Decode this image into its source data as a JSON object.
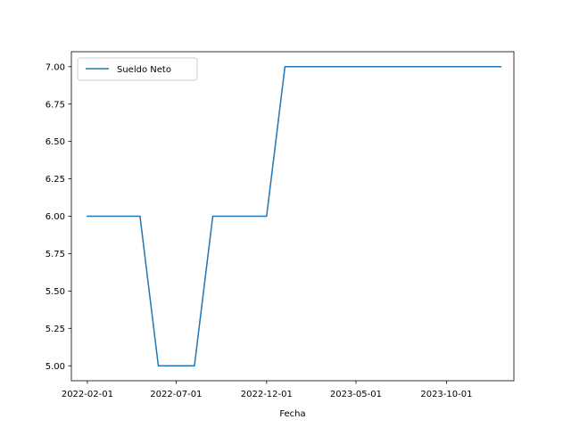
{
  "chart_data": {
    "type": "line",
    "xlabel": "Fecha",
    "ylabel": "",
    "x_tick_labels": [
      "2022-02-01",
      "2022-07-01",
      "2022-12-01",
      "2023-05-01",
      "2023-10-01"
    ],
    "y_tick_labels": [
      "5.00",
      "5.25",
      "5.50",
      "5.75",
      "6.00",
      "6.25",
      "6.50",
      "6.75",
      "7.00"
    ],
    "ylim": [
      4.9,
      7.1
    ],
    "xlim": [
      "2022-01-05",
      "2024-01-23"
    ],
    "grid": false,
    "legend_position": "top-left",
    "series": [
      {
        "name": "Sueldo Neto",
        "color": "#1f77b4",
        "x": [
          "2022-02-01",
          "2022-03-01",
          "2022-04-01",
          "2022-05-01",
          "2022-06-01",
          "2022-07-01",
          "2022-08-01",
          "2022-09-01",
          "2022-10-01",
          "2022-11-01",
          "2022-12-01",
          "2023-01-01",
          "2023-02-01",
          "2023-03-01",
          "2023-04-01",
          "2023-05-01",
          "2023-06-01",
          "2023-07-01",
          "2023-08-01",
          "2023-09-01",
          "2023-10-01",
          "2023-11-01",
          "2023-12-01",
          "2024-01-01"
        ],
        "values": [
          6,
          6,
          6,
          6,
          5,
          5,
          5,
          6,
          6,
          6,
          6,
          7,
          7,
          7,
          7,
          7,
          7,
          7,
          7,
          7,
          7,
          7,
          7,
          7
        ]
      }
    ]
  }
}
